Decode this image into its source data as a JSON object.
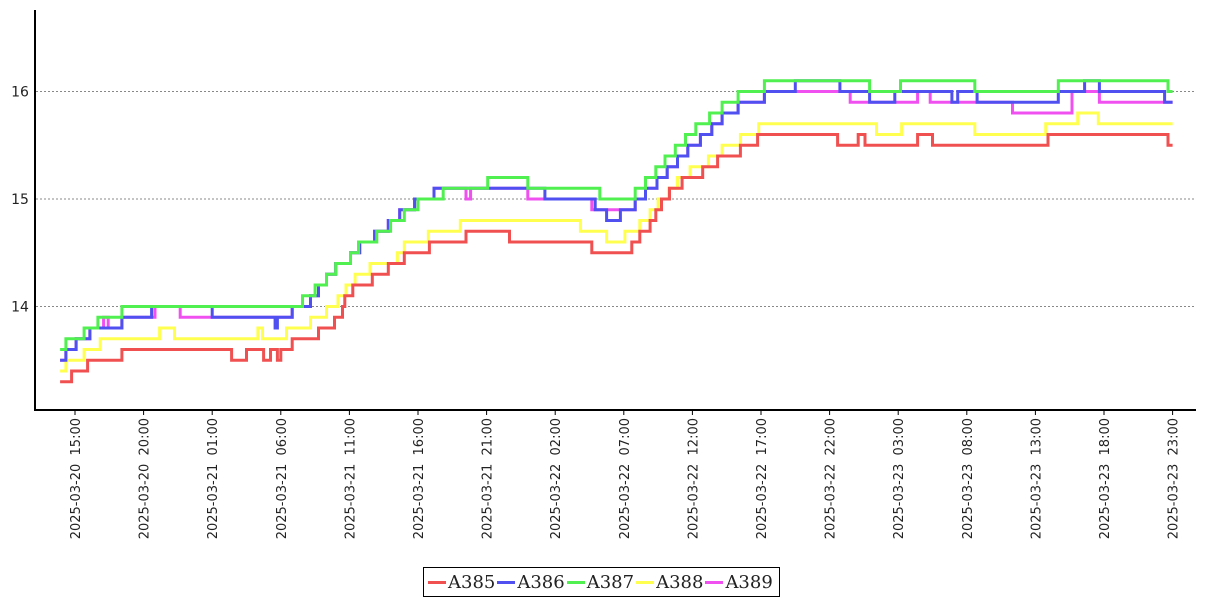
{
  "chart_data": {
    "type": "line",
    "step": true,
    "title": "",
    "xlabel": "",
    "ylabel": "",
    "ylim": [
      13.04,
      16.76
    ],
    "xlim": [
      "2025-03-20 12:00",
      "2025-03-24 00:20"
    ],
    "grid": {
      "y": true,
      "x": false,
      "style": "dotted"
    },
    "yticks": [
      "14",
      "15",
      "16"
    ],
    "ytick_values": [
      14,
      15,
      16
    ],
    "xticks": [
      "2025-03-20  15:00",
      "2025-03-20  20:00",
      "2025-03-21  01:00",
      "2025-03-21  06:00",
      "2025-03-21  11:00",
      "2025-03-21  16:00",
      "2025-03-21  21:00",
      "2025-03-22  02:00",
      "2025-03-22  07:00",
      "2025-03-22  12:00",
      "2025-03-22  17:00",
      "2025-03-22  22:00",
      "2025-03-23  03:00",
      "2025-03-23  08:00",
      "2025-03-23  13:00",
      "2025-03-23  18:00",
      "2025-03-23  23:00"
    ],
    "legend_position": "bottom-center",
    "series": [
      {
        "name": "A389",
        "color": "#f050f0",
        "points": [
          [
            "2025-03-20 13:55",
            13.5
          ],
          [
            "2025-03-20 14:20",
            13.6
          ],
          [
            "2025-03-20 15:05",
            13.7
          ],
          [
            "2025-03-20 16:05",
            13.8
          ],
          [
            "2025-03-20 17:05",
            13.9
          ],
          [
            "2025-03-20 17:25",
            13.8
          ],
          [
            "2025-03-20 18:25",
            13.9
          ],
          [
            "2025-03-20 20:50",
            14.0
          ],
          [
            "2025-03-20 22:40",
            13.9
          ],
          [
            "2025-03-21 06:50",
            14.0
          ],
          [
            "2025-03-21 08:10",
            14.1
          ],
          [
            "2025-03-21 08:45",
            14.2
          ],
          [
            "2025-03-21 09:20",
            14.3
          ],
          [
            "2025-03-21 10:00",
            14.4
          ],
          [
            "2025-03-21 11:05",
            14.5
          ],
          [
            "2025-03-21 11:45",
            14.6
          ],
          [
            "2025-03-21 12:50",
            14.7
          ],
          [
            "2025-03-21 13:50",
            14.8
          ],
          [
            "2025-03-21 14:40",
            14.9
          ],
          [
            "2025-03-21 15:45",
            15.0
          ],
          [
            "2025-03-21 17:10",
            15.1
          ],
          [
            "2025-03-21 19:30",
            15.0
          ],
          [
            "2025-03-21 19:50",
            15.1
          ],
          [
            "2025-03-22 00:00",
            15.0
          ],
          [
            "2025-03-22 04:40",
            14.9
          ],
          [
            "2025-03-22 07:50",
            15.0
          ],
          [
            "2025-03-22 08:35",
            15.1
          ],
          [
            "2025-03-22 09:25",
            15.2
          ],
          [
            "2025-03-22 10:10",
            15.3
          ],
          [
            "2025-03-22 10:55",
            15.4
          ],
          [
            "2025-03-22 11:40",
            15.5
          ],
          [
            "2025-03-22 12:35",
            15.6
          ],
          [
            "2025-03-22 13:25",
            15.7
          ],
          [
            "2025-03-22 14:10",
            15.8
          ],
          [
            "2025-03-22 15:20",
            15.9
          ],
          [
            "2025-03-22 17:15",
            16.0
          ],
          [
            "2025-03-22 23:30",
            15.9
          ],
          [
            "2025-03-23 04:25",
            16.0
          ],
          [
            "2025-03-23 05:20",
            15.9
          ],
          [
            "2025-03-23 11:20",
            15.8
          ],
          [
            "2025-03-23 15:40",
            16.0
          ],
          [
            "2025-03-23 17:40",
            15.9
          ],
          [
            "2025-03-23 23:00",
            15.9
          ]
        ]
      },
      {
        "name": "A388",
        "color": "#ffff50",
        "points": [
          [
            "2025-03-20 13:55",
            13.4
          ],
          [
            "2025-03-20 14:20",
            13.5
          ],
          [
            "2025-03-20 15:40",
            13.6
          ],
          [
            "2025-03-20 16:50",
            13.7
          ],
          [
            "2025-03-20 21:10",
            13.8
          ],
          [
            "2025-03-20 22:15",
            13.7
          ],
          [
            "2025-03-21 04:20",
            13.8
          ],
          [
            "2025-03-21 04:40",
            13.7
          ],
          [
            "2025-03-21 06:25",
            13.8
          ],
          [
            "2025-03-21 08:10",
            13.9
          ],
          [
            "2025-03-21 09:20",
            14.0
          ],
          [
            "2025-03-21 10:10",
            14.1
          ],
          [
            "2025-03-21 10:45",
            14.2
          ],
          [
            "2025-03-21 11:25",
            14.3
          ],
          [
            "2025-03-21 12:30",
            14.4
          ],
          [
            "2025-03-21 14:30",
            14.5
          ],
          [
            "2025-03-21 15:00",
            14.6
          ],
          [
            "2025-03-21 16:45",
            14.7
          ],
          [
            "2025-03-21 19:05",
            14.8
          ],
          [
            "2025-03-22 03:50",
            14.7
          ],
          [
            "2025-03-22 05:45",
            14.6
          ],
          [
            "2025-03-22 07:05",
            14.7
          ],
          [
            "2025-03-22 08:10",
            14.8
          ],
          [
            "2025-03-22 08:55",
            14.9
          ],
          [
            "2025-03-22 09:30",
            15.0
          ],
          [
            "2025-03-22 10:15",
            15.1
          ],
          [
            "2025-03-22 10:55",
            15.2
          ],
          [
            "2025-03-22 11:50",
            15.3
          ],
          [
            "2025-03-22 13:10",
            15.4
          ],
          [
            "2025-03-22 14:10",
            15.5
          ],
          [
            "2025-03-22 15:30",
            15.6
          ],
          [
            "2025-03-22 16:50",
            15.7
          ],
          [
            "2025-03-23 01:25",
            15.6
          ],
          [
            "2025-03-23 03:15",
            15.7
          ],
          [
            "2025-03-23 08:35",
            15.6
          ],
          [
            "2025-03-23 13:45",
            15.7
          ],
          [
            "2025-03-23 16:05",
            15.8
          ],
          [
            "2025-03-23 17:35",
            15.7
          ],
          [
            "2025-03-23 23:00",
            15.7
          ]
        ]
      },
      {
        "name": "A385",
        "color": "#f05050",
        "points": [
          [
            "2025-03-20 13:55",
            13.3
          ],
          [
            "2025-03-20 14:45",
            13.4
          ],
          [
            "2025-03-20 15:55",
            13.5
          ],
          [
            "2025-03-20 18:25",
            13.6
          ],
          [
            "2025-03-21 02:25",
            13.5
          ],
          [
            "2025-03-21 03:30",
            13.6
          ],
          [
            "2025-03-21 04:45",
            13.5
          ],
          [
            "2025-03-21 05:15",
            13.6
          ],
          [
            "2025-03-21 05:45",
            13.5
          ],
          [
            "2025-03-21 06:00",
            13.6
          ],
          [
            "2025-03-21 06:50",
            13.7
          ],
          [
            "2025-03-21 08:45",
            13.8
          ],
          [
            "2025-03-21 09:55",
            13.9
          ],
          [
            "2025-03-21 10:30",
            14.0
          ],
          [
            "2025-03-21 10:40",
            14.1
          ],
          [
            "2025-03-21 11:15",
            14.2
          ],
          [
            "2025-03-21 12:40",
            14.3
          ],
          [
            "2025-03-21 13:50",
            14.4
          ],
          [
            "2025-03-21 15:00",
            14.5
          ],
          [
            "2025-03-21 16:50",
            14.6
          ],
          [
            "2025-03-21 19:30",
            14.7
          ],
          [
            "2025-03-21 22:40",
            14.6
          ],
          [
            "2025-03-22 04:40",
            14.5
          ],
          [
            "2025-03-22 07:35",
            14.6
          ],
          [
            "2025-03-22 08:10",
            14.7
          ],
          [
            "2025-03-22 08:55",
            14.8
          ],
          [
            "2025-03-22 09:20",
            14.9
          ],
          [
            "2025-03-22 09:45",
            15.0
          ],
          [
            "2025-03-22 10:20",
            15.1
          ],
          [
            "2025-03-22 11:15",
            15.2
          ],
          [
            "2025-03-22 12:45",
            15.3
          ],
          [
            "2025-03-22 13:50",
            15.4
          ],
          [
            "2025-03-22 15:30",
            15.5
          ],
          [
            "2025-03-22 16:45",
            15.6
          ],
          [
            "2025-03-22 22:35",
            15.5
          ],
          [
            "2025-03-23 00:05",
            15.6
          ],
          [
            "2025-03-23 00:35",
            15.5
          ],
          [
            "2025-03-23 04:25",
            15.6
          ],
          [
            "2025-03-23 05:30",
            15.5
          ],
          [
            "2025-03-23 13:55",
            15.6
          ],
          [
            "2025-03-23 22:40",
            15.5
          ],
          [
            "2025-03-23 23:00",
            15.5
          ]
        ]
      },
      {
        "name": "A386",
        "color": "#5050f0",
        "points": [
          [
            "2025-03-20 13:55",
            13.5
          ],
          [
            "2025-03-20 14:20",
            13.6
          ],
          [
            "2025-03-20 15:05",
            13.7
          ],
          [
            "2025-03-20 16:05",
            13.8
          ],
          [
            "2025-03-20 18:25",
            13.9
          ],
          [
            "2025-03-20 20:35",
            14.0
          ],
          [
            "2025-03-21 01:00",
            13.9
          ],
          [
            "2025-03-21 05:35",
            13.8
          ],
          [
            "2025-03-21 05:45",
            13.9
          ],
          [
            "2025-03-21 06:50",
            14.0
          ],
          [
            "2025-03-21 08:10",
            14.1
          ],
          [
            "2025-03-21 08:45",
            14.2
          ],
          [
            "2025-03-21 09:20",
            14.3
          ],
          [
            "2025-03-21 10:00",
            14.4
          ],
          [
            "2025-03-21 11:05",
            14.5
          ],
          [
            "2025-03-21 11:45",
            14.6
          ],
          [
            "2025-03-21 12:50",
            14.7
          ],
          [
            "2025-03-21 13:50",
            14.8
          ],
          [
            "2025-03-21 14:40",
            14.9
          ],
          [
            "2025-03-21 15:45",
            15.0
          ],
          [
            "2025-03-21 17:10",
            15.1
          ],
          [
            "2025-03-22 01:15",
            15.0
          ],
          [
            "2025-03-22 04:55",
            14.9
          ],
          [
            "2025-03-22 05:45",
            14.8
          ],
          [
            "2025-03-22 06:45",
            14.9
          ],
          [
            "2025-03-22 07:50",
            15.0
          ],
          [
            "2025-03-22 08:35",
            15.1
          ],
          [
            "2025-03-22 09:25",
            15.2
          ],
          [
            "2025-03-22 10:10",
            15.3
          ],
          [
            "2025-03-22 10:55",
            15.4
          ],
          [
            "2025-03-22 11:40",
            15.5
          ],
          [
            "2025-03-22 12:35",
            15.6
          ],
          [
            "2025-03-22 13:25",
            15.7
          ],
          [
            "2025-03-22 14:10",
            15.8
          ],
          [
            "2025-03-22 15:20",
            15.9
          ],
          [
            "2025-03-22 17:15",
            16.0
          ],
          [
            "2025-03-22 19:30",
            16.1
          ],
          [
            "2025-03-22 22:45",
            16.0
          ],
          [
            "2025-03-23 00:55",
            15.9
          ],
          [
            "2025-03-23 02:45",
            16.0
          ],
          [
            "2025-03-23 06:55",
            15.9
          ],
          [
            "2025-03-23 07:20",
            16.0
          ],
          [
            "2025-03-23 08:45",
            15.9
          ],
          [
            "2025-03-23 14:40",
            16.0
          ],
          [
            "2025-03-23 16:35",
            16.1
          ],
          [
            "2025-03-23 17:40",
            16.0
          ],
          [
            "2025-03-23 22:25",
            15.9
          ],
          [
            "2025-03-23 23:00",
            15.9
          ]
        ]
      },
      {
        "name": "A387",
        "color": "#50f050",
        "points": [
          [
            "2025-03-20 13:55",
            13.6
          ],
          [
            "2025-03-20 14:20",
            13.7
          ],
          [
            "2025-03-20 15:40",
            13.8
          ],
          [
            "2025-03-20 16:40",
            13.9
          ],
          [
            "2025-03-20 18:25",
            14.0
          ],
          [
            "2025-03-21 07:35",
            14.1
          ],
          [
            "2025-03-21 08:30",
            14.2
          ],
          [
            "2025-03-21 09:20",
            14.3
          ],
          [
            "2025-03-21 10:00",
            14.4
          ],
          [
            "2025-03-21 11:05",
            14.5
          ],
          [
            "2025-03-21 11:40",
            14.6
          ],
          [
            "2025-03-21 13:00",
            14.7
          ],
          [
            "2025-03-21 14:00",
            14.8
          ],
          [
            "2025-03-21 15:00",
            14.9
          ],
          [
            "2025-03-21 16:00",
            15.0
          ],
          [
            "2025-03-21 17:50",
            15.1
          ],
          [
            "2025-03-21 21:05",
            15.2
          ],
          [
            "2025-03-22 00:00",
            15.1
          ],
          [
            "2025-03-22 05:15",
            15.0
          ],
          [
            "2025-03-22 07:50",
            15.1
          ],
          [
            "2025-03-22 08:35",
            15.2
          ],
          [
            "2025-03-22 09:20",
            15.3
          ],
          [
            "2025-03-22 10:00",
            15.4
          ],
          [
            "2025-03-22 10:45",
            15.5
          ],
          [
            "2025-03-22 11:30",
            15.6
          ],
          [
            "2025-03-22 12:15",
            15.7
          ],
          [
            "2025-03-22 13:15",
            15.8
          ],
          [
            "2025-03-22 14:10",
            15.9
          ],
          [
            "2025-03-22 15:20",
            16.0
          ],
          [
            "2025-03-22 17:15",
            16.1
          ],
          [
            "2025-03-23 00:55",
            16.0
          ],
          [
            "2025-03-23 03:10",
            16.1
          ],
          [
            "2025-03-23 08:35",
            16.0
          ],
          [
            "2025-03-23 14:40",
            16.1
          ],
          [
            "2025-03-23 22:40",
            16.0
          ],
          [
            "2025-03-23 23:00",
            16.0
          ]
        ]
      }
    ],
    "legend": [
      {
        "name": "A385",
        "color": "#f05050"
      },
      {
        "name": "A386",
        "color": "#5050f0"
      },
      {
        "name": "A387",
        "color": "#50f050"
      },
      {
        "name": "A388",
        "color": "#ffff50"
      },
      {
        "name": "A389",
        "color": "#f050f0"
      }
    ]
  }
}
